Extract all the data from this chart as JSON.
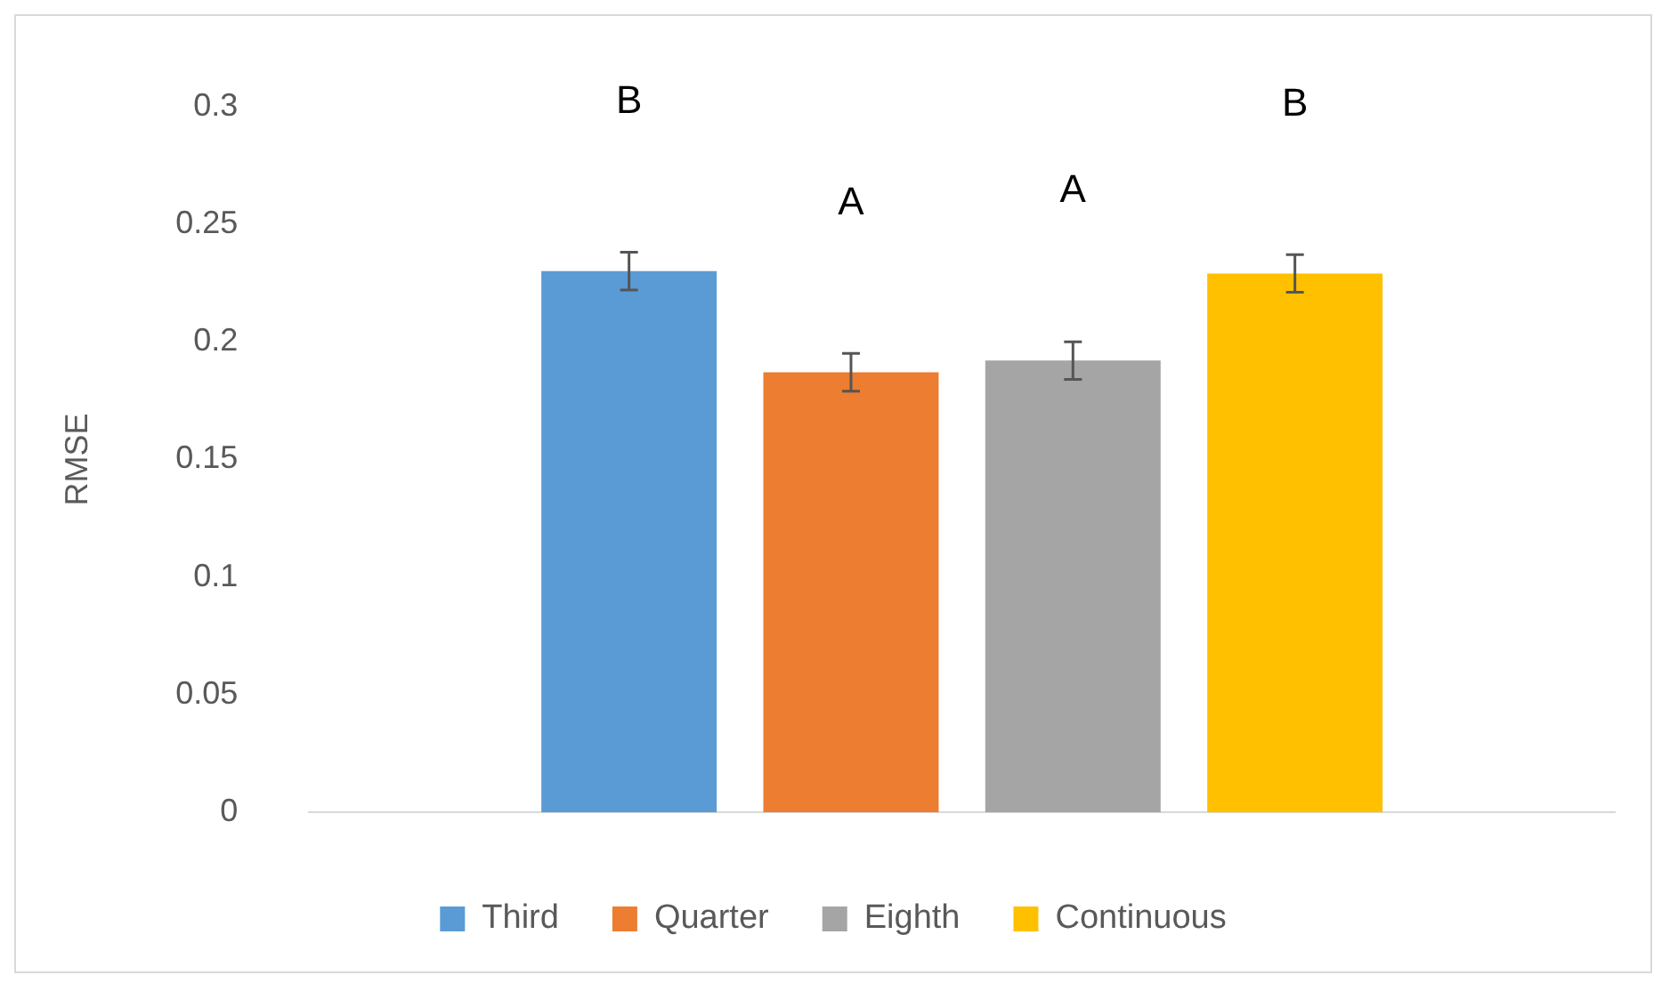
{
  "chart_data": {
    "type": "bar",
    "ylabel": "RMSE",
    "categories": [
      null
    ],
    "series": [
      {
        "name": "Third",
        "color": "#5b9bd5",
        "values": [
          0.23
        ],
        "errors": [
          0.008
        ]
      },
      {
        "name": "Quarter",
        "color": "#ed7d31",
        "values": [
          0.187
        ],
        "errors": [
          0.008
        ]
      },
      {
        "name": "Eighth",
        "color": "#a5a5a5",
        "values": [
          0.192
        ],
        "errors": [
          0.008
        ]
      },
      {
        "name": "Continuous",
        "color": "#ffc000",
        "values": [
          0.229
        ],
        "errors": [
          0.008
        ]
      }
    ],
    "ylim": [
      0,
      0.3
    ],
    "yticks": [
      0,
      0.05,
      0.1,
      0.15,
      0.2,
      0.25,
      0.3
    ],
    "grid": false,
    "legend": "bottom",
    "annotations": [
      "B",
      "A",
      "A",
      "B"
    ]
  }
}
